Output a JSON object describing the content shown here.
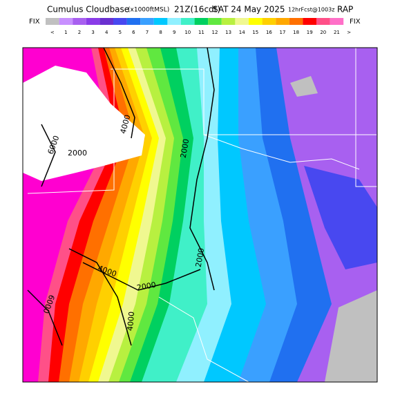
{
  "header": {
    "title_parts": [
      "Cumulus Cloudbase",
      "(x1000ftMSL)",
      "21Z(16cdt)",
      "SAT 24 May 2025",
      "12hrFcst@1003z",
      "RAP"
    ]
  },
  "colorbar": {
    "left": "FIX",
    "right": "FIX",
    "labels": [
      "<",
      "1",
      "2",
      "3",
      "4",
      "5",
      "6",
      "7",
      "8",
      "9",
      "10",
      "11",
      "12",
      "13",
      "14",
      "15",
      "16",
      "17",
      "18",
      "19",
      "20",
      "21",
      ">"
    ],
    "colors": [
      "#c0c0c0",
      "#c890ff",
      "#a860f0",
      "#8a3ce8",
      "#6a30d0",
      "#4848f0",
      "#2070f0",
      "#3aa0ff",
      "#00c8ff",
      "#90f0ff",
      "#40f0c8",
      "#00d060",
      "#60e840",
      "#b8f040",
      "#f0f890",
      "#ffff00",
      "#ffd000",
      "#ffa800",
      "#ff7000",
      "#ff0000",
      "#ff5088",
      "#ff70c8",
      "#ff00d0"
    ]
  },
  "map": {
    "contour_labels": [
      "6000",
      "2000",
      "4000",
      "2000",
      "2000",
      "4000",
      "2000",
      "4000",
      "6000"
    ]
  }
}
